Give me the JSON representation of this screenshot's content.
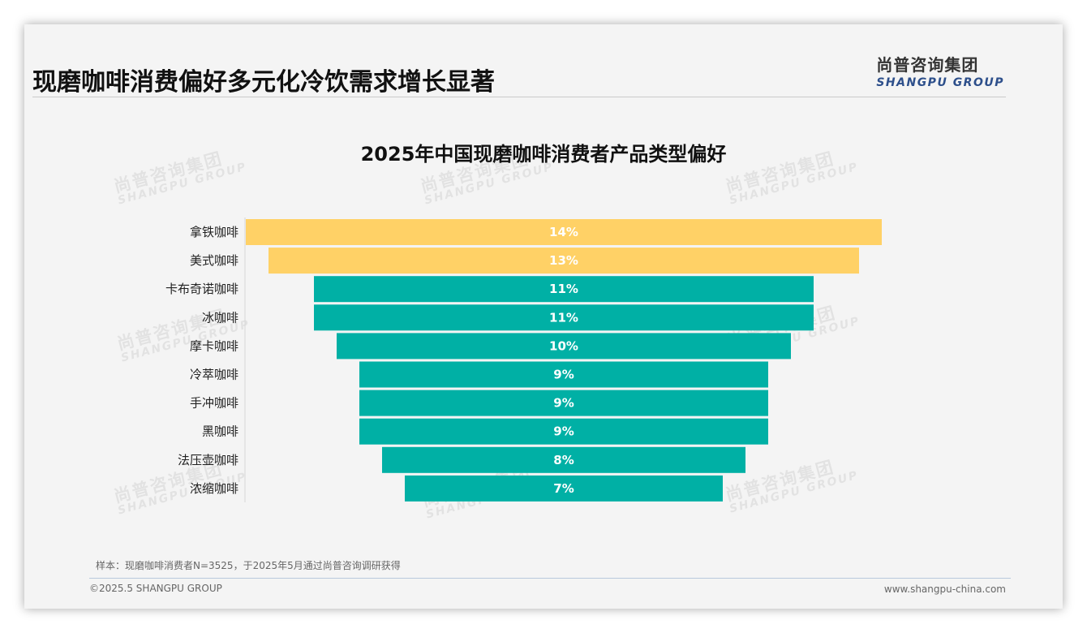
{
  "header": {
    "title": "现磨咖啡消费偏好多元化冷饮需求增长显著",
    "logo_cn": "尚普咨询集团",
    "logo_en": "SHANGPU GROUP"
  },
  "watermark": {
    "cn": "尚普咨询集团",
    "en": "SHANGPU GROUP"
  },
  "colors": {
    "highlight": "#FFD166",
    "primary": "#00B0A5"
  },
  "chart_data": {
    "type": "bar",
    "orientation": "horizontal-centered-funnel",
    "title": "2025年中国现磨咖啡消费者产品类型偏好",
    "categories": [
      "拿铁咖啡",
      "美式咖啡",
      "卡布奇诺咖啡",
      "冰咖啡",
      "摩卡咖啡",
      "冷萃咖啡",
      "手冲咖啡",
      "黑咖啡",
      "法压壶咖啡",
      "浓缩咖啡"
    ],
    "values": [
      14,
      13,
      11,
      11,
      10,
      9,
      9,
      9,
      8,
      7
    ],
    "value_labels": [
      "14%",
      "13%",
      "11%",
      "11%",
      "10%",
      "9%",
      "9%",
      "9%",
      "8%",
      "7%"
    ],
    "unit": "%",
    "highlighted_categories": [
      "拿铁咖啡",
      "美式咖啡"
    ],
    "xlim": [
      0,
      14
    ],
    "grid": false,
    "legend": "none"
  },
  "footer": {
    "note": "样本：现磨咖啡消费者N=3525，于2025年5月通过尚普咨询调研获得",
    "copyright": "©2025.5 SHANGPU GROUP",
    "website": "www.shangpu-china.com"
  }
}
